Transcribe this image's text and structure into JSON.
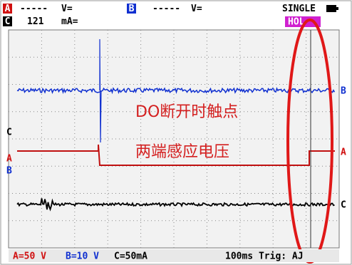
{
  "header": {
    "channel_a": "A",
    "a_reading": "-----",
    "a_unit": "V=",
    "channel_b": "B",
    "b_reading": "-----",
    "b_unit": "V=",
    "mode": "SINGLE",
    "channel_c": "C",
    "c_reading": "121",
    "c_unit": "mA=",
    "status": "HOL"
  },
  "annotations": [
    "DO断开时触点",
    "两端感应电压"
  ],
  "markers": {
    "left": [
      "C",
      "A",
      "B"
    ],
    "right": [
      "B",
      "A",
      "C"
    ]
  },
  "footer": {
    "a_scale": "A=50 V",
    "b_scale": "B=10 V",
    "c_scale": "C=50mA",
    "timebase": "100ms Trig: AJ"
  }
}
